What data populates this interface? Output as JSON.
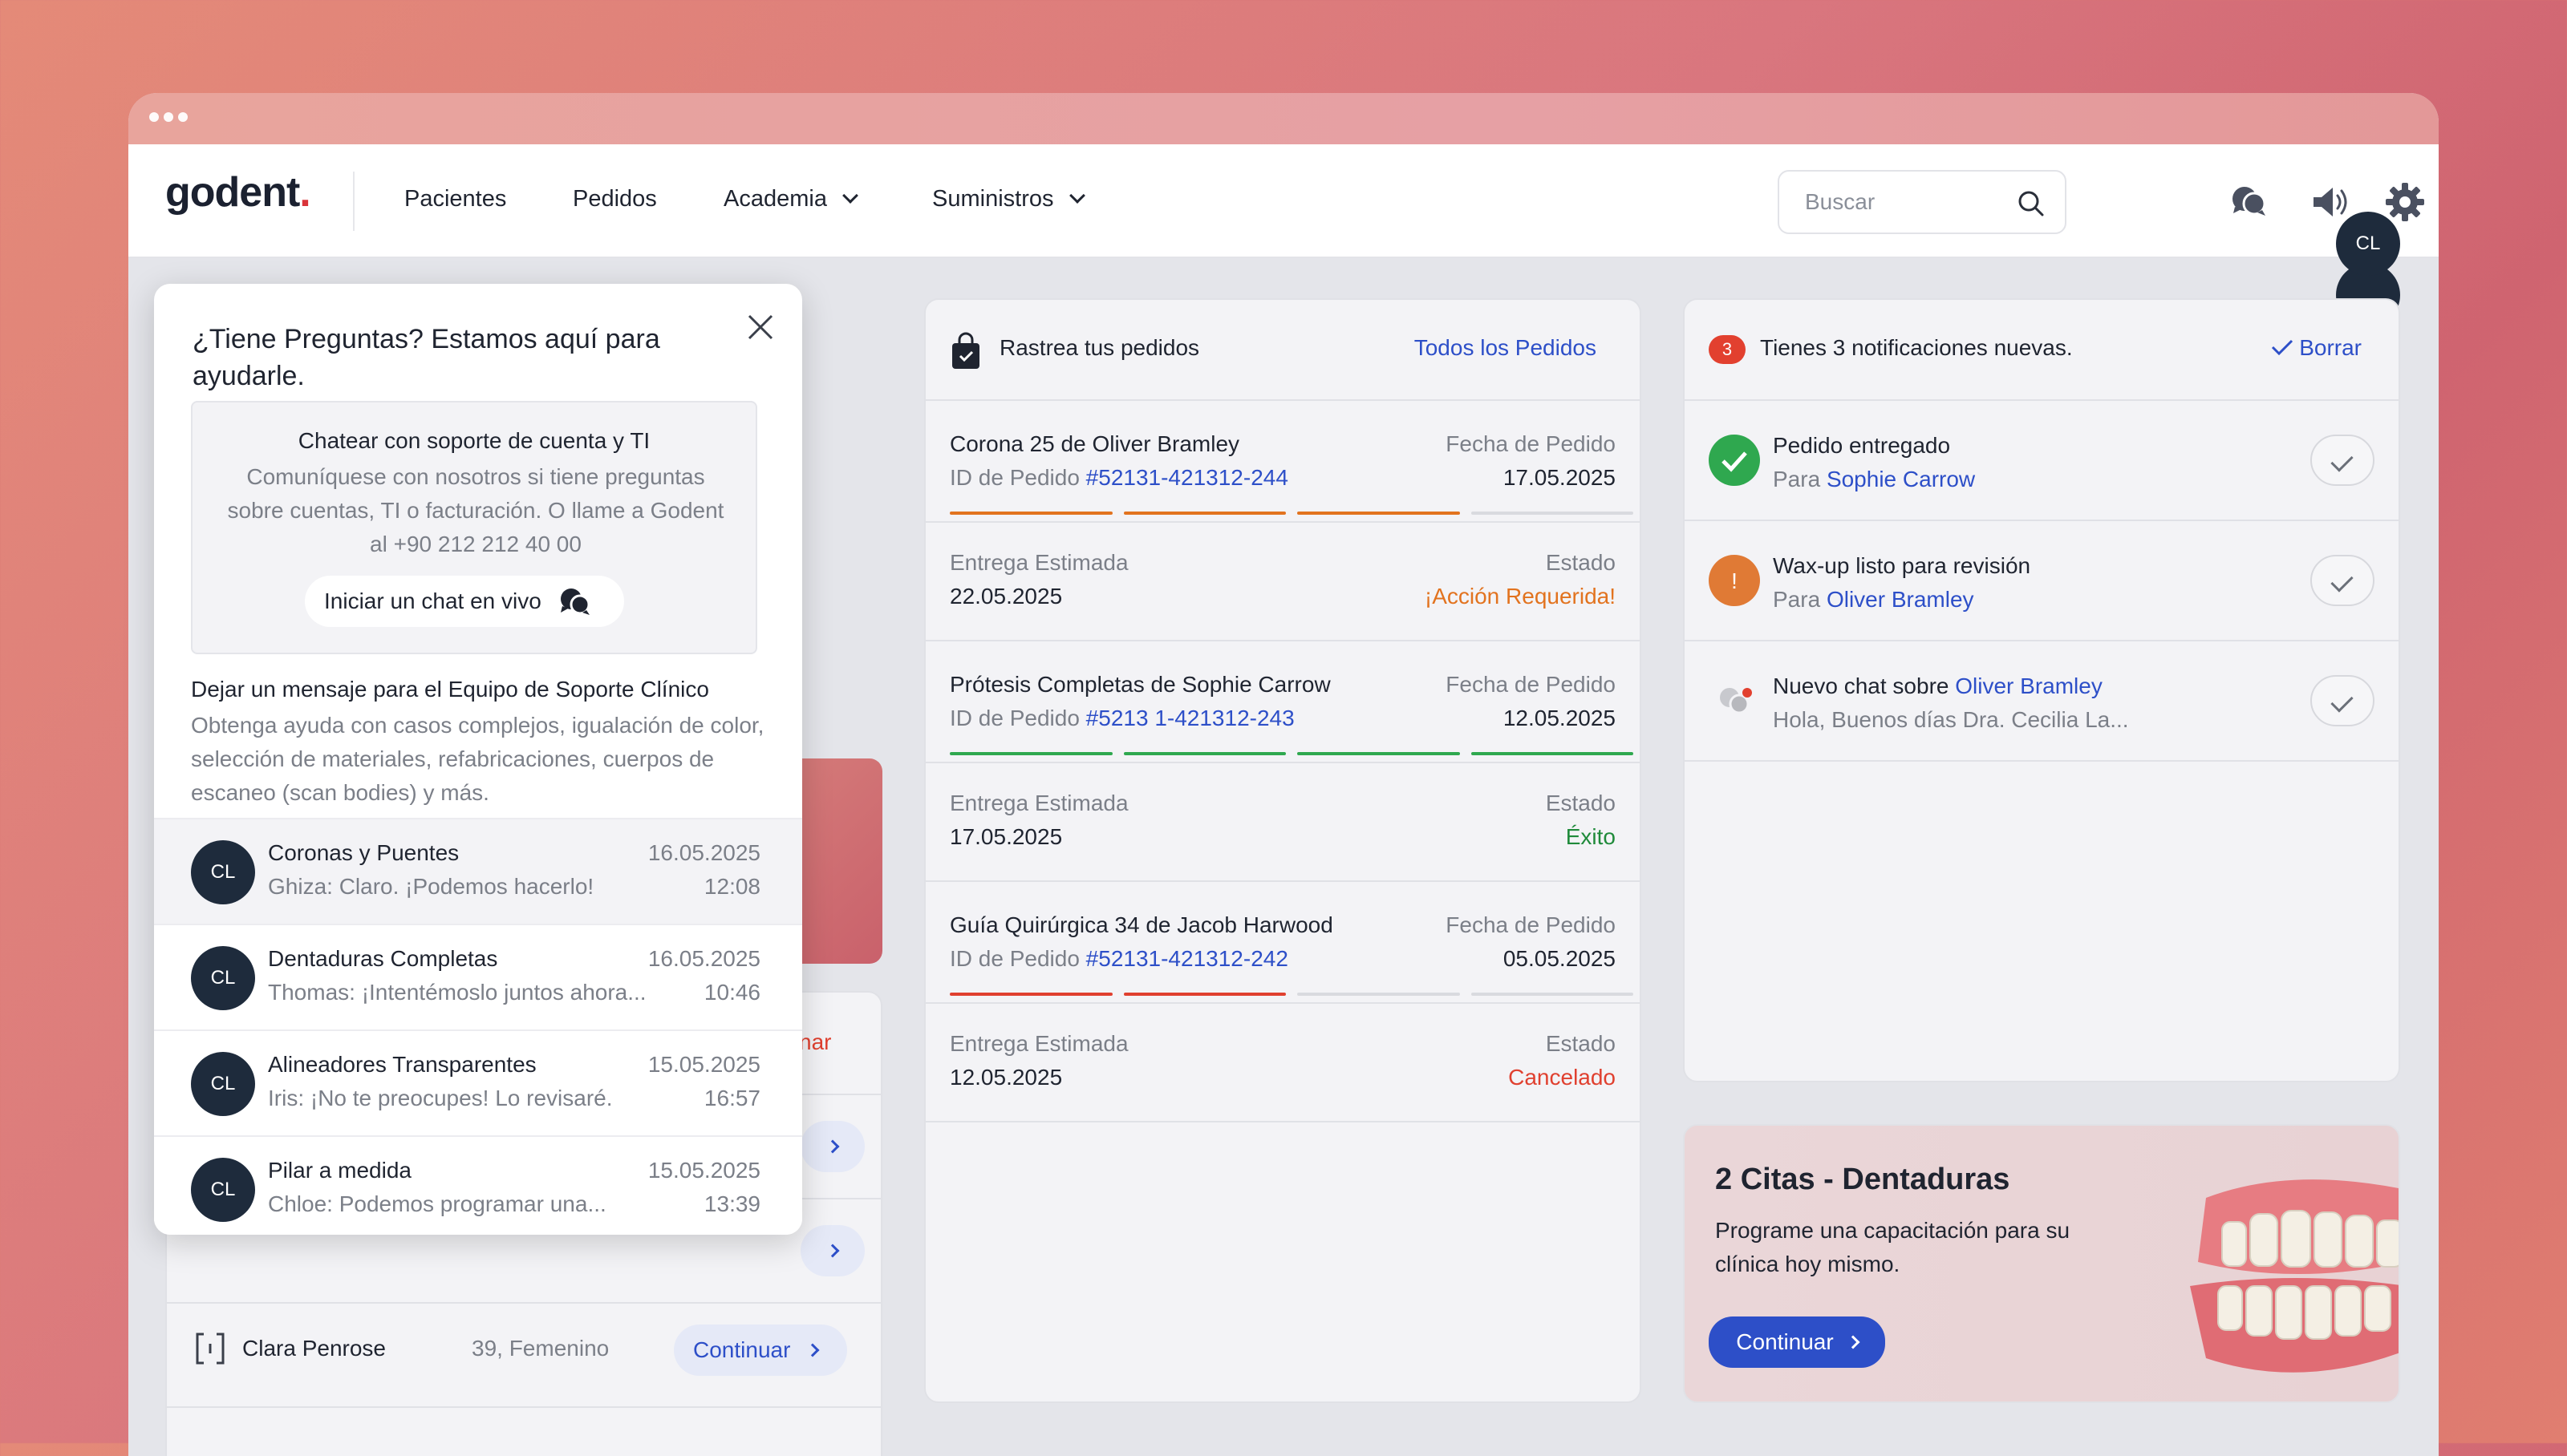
{
  "nav": {
    "logo_text": "godent",
    "logo_dot": ".",
    "items": [
      "Pacientes",
      "Pedidos",
      "Academia",
      "Suministros"
    ],
    "search_placeholder": "Buscar",
    "avatar_initials": "CL"
  },
  "help_popup": {
    "title": "¿Tiene Preguntas? Estamos aquí para ayudarle.",
    "support_box": {
      "heading": "Chatear con soporte de cuenta y TI",
      "body": "Comuníquese con nosotros si tiene preguntas sobre cuentas, TI o facturación. O llame a Godent al +90 212 212 40 00",
      "live_chat_label": "Iniciar un chat en vivo"
    },
    "clinical": {
      "heading": "Dejar un mensaje para el Equipo de Soporte Clínico",
      "body": "Obtenga ayuda con casos complejos, igualación de color, selección de materiales, refabricaciones, cuerpos de escaneo (scan bodies) y más."
    },
    "chats": [
      {
        "initials": "CL",
        "title": "Coronas y Puentes",
        "preview": "Ghiza: Claro. ¡Podemos hacerlo!",
        "date": "16.05.2025",
        "time": "12:08"
      },
      {
        "initials": "CL",
        "title": "Dentaduras Completas",
        "preview": "Thomas: ¡Intentémoslo juntos ahora...",
        "date": "16.05.2025",
        "time": "10:46"
      },
      {
        "initials": "CL",
        "title": "Alineadores Transparentes",
        "preview": "Iris: ¡No te preocupes! Lo revisaré.",
        "date": "15.05.2025",
        "time": "16:57"
      },
      {
        "initials": "CL",
        "title": "Pilar a medida",
        "preview": "Chloe: Podemos programar una...",
        "date": "15.05.2025",
        "time": "13:39"
      }
    ]
  },
  "left_panel": {
    "partial_text": "nar",
    "patient": {
      "name": "Clara Penrose",
      "info": "39, Femenino",
      "action": "Continuar"
    }
  },
  "orders": {
    "title": "Rastrea tus pedidos",
    "all_link": "Todos los Pedidos",
    "order_date_label": "Fecha de Pedido",
    "id_prefix": "ID de Pedido",
    "eta_label": "Entrega Estimada",
    "status_label": "Estado",
    "items": [
      {
        "name": "Corona 25 de Oliver Bramley",
        "id": "#52131-421312-244",
        "order_date": "17.05.2025",
        "eta": "22.05.2025",
        "status": "¡Acción Requerida!",
        "status_color": "#e2731f",
        "progress_steps": 3,
        "progress_color": "#e2731f"
      },
      {
        "name": "Prótesis Completas de Sophie Carrow",
        "id": "#5213 1-421312-243",
        "order_date": "12.05.2025",
        "eta": "17.05.2025",
        "status": "Éxito",
        "status_color": "#1f8a3a",
        "progress_steps": 4,
        "progress_color": "#2fa84f"
      },
      {
        "name": "Guía Quirúrgica 34 de Jacob Harwood",
        "id": "#52131-421312-242",
        "order_date": "05.05.2025",
        "eta": "12.05.2025",
        "status": "Cancelado",
        "status_color": "#e0402f",
        "progress_steps": 2,
        "progress_color": "#e0402f"
      }
    ]
  },
  "notifications": {
    "count": "3",
    "title": "Tienes 3 notificaciones nuevas.",
    "clear_label": "Borrar",
    "items": [
      {
        "title": "Pedido entregado",
        "prefix": "Para",
        "name": "Sophie Carrow",
        "icon": "check-circle-icon"
      },
      {
        "title": "Wax-up listo para revisión",
        "prefix": "Para",
        "name": "Oliver Bramley",
        "icon": "exclamation-icon"
      },
      {
        "title": "Nuevo chat sobre",
        "name": "Oliver Bramley",
        "preview": "Hola, Buenos días Dra. Cecilia La...",
        "icon": "chat-bubbles-icon"
      }
    ]
  },
  "promo": {
    "title": "2 Citas - Dentaduras",
    "body": "Programe una capacitación para su clínica hoy mismo.",
    "button": "Continuar"
  }
}
